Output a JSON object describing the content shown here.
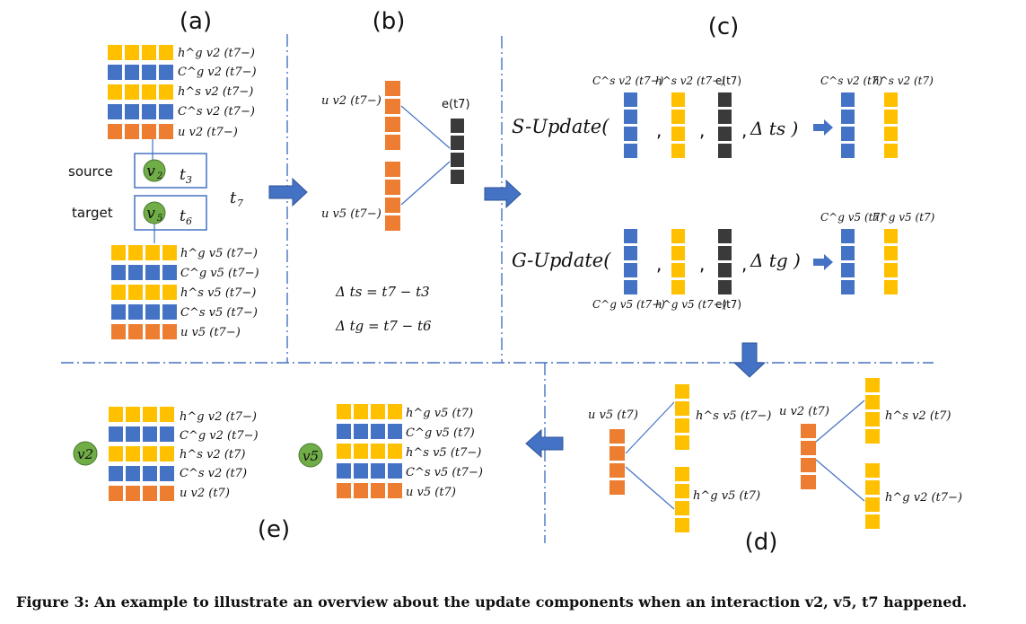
{
  "panels": {
    "a": "(a)",
    "b": "(b)",
    "c": "(c)",
    "d": "(d)",
    "e": "(e)"
  },
  "colors": {
    "yellow": "#FFC000",
    "blue": "#4472C4",
    "orange": "#ED7D31",
    "black": "#3A3A3A",
    "green": "#70AD47",
    "arrow": "#4472C4",
    "divider": "#4472C4"
  },
  "panel_a": {
    "source_label": "source",
    "target_label": "target",
    "source_node": "v",
    "source_node_sub": "2",
    "source_time": "t",
    "source_time_sub": "3",
    "target_node": "v",
    "target_node_sub": "5",
    "target_time": "t",
    "target_time_sub": "6",
    "event_time": "t",
    "event_time_sub": "7",
    "v2_rows": [
      "h^g v2 (t7−)",
      "C^g v2 (t7−)",
      "h^s v2 (t7−)",
      "C^s v2 (t7−)",
      "u v2 (t7−)"
    ],
    "v5_rows": [
      "h^g v5 (t7−)",
      "C^g v5 (t7−)",
      "h^s v5 (t7−)",
      "C^s v5 (t7−)",
      "u v5 (t7−)"
    ]
  },
  "panel_b": {
    "u_v2": "u v2 (t7−)",
    "u_v5": "u v5 (t7−)",
    "edge": "e(t7)",
    "delta_s": "Δ ts = t7 − t3",
    "delta_g": "Δ tg = t7 − t6"
  },
  "panel_c": {
    "s_update": "S-Update(",
    "g_update": "G-Update(",
    "comma": ",",
    "s_delta": "Δ ts )",
    "g_delta": "Δ tg )",
    "s_in_1": "C^s v2 (t7−)",
    "s_in_2": "h^s v2 (t7−)",
    "s_in_3": "e(t7)",
    "s_out_1": "C^s v2 (t7)",
    "s_out_2": "h^s v2 (t7)",
    "g_in_1": "C^g v5 (t7−)",
    "g_in_2": "h^g v5 (t7−)",
    "g_in_3": "e(t7)",
    "g_out_1": "C^g v5 (t7)",
    "g_out_2": "h^g v5 (t7)"
  },
  "panel_d": {
    "left_u": "u v5 (t7)",
    "left_top": "h^s v5 (t7−)",
    "left_bottom": "h^g v5 (t7)",
    "right_u": "u v2 (t7)",
    "right_top": "h^s v2 (t7)",
    "right_bottom": "h^g v2 (t7−)"
  },
  "panel_e": {
    "node_v2": "v2",
    "node_v5": "v5",
    "v2_rows": [
      "h^g v2 (t7−)",
      "C^g v2 (t7−)",
      "h^s v2 (t7)",
      "C^s v2 (t7)",
      "u v2 (t7)"
    ],
    "v5_rows": [
      "h^g v5 (t7)",
      "C^g v5 (t7)",
      "h^s v5 (t7−)",
      "C^s v5 (t7−)",
      "u v5 (t7)"
    ]
  },
  "caption": "Figure 3: An example to illustrate an overview about the update components when an interaction v2, v5, t7 happened."
}
